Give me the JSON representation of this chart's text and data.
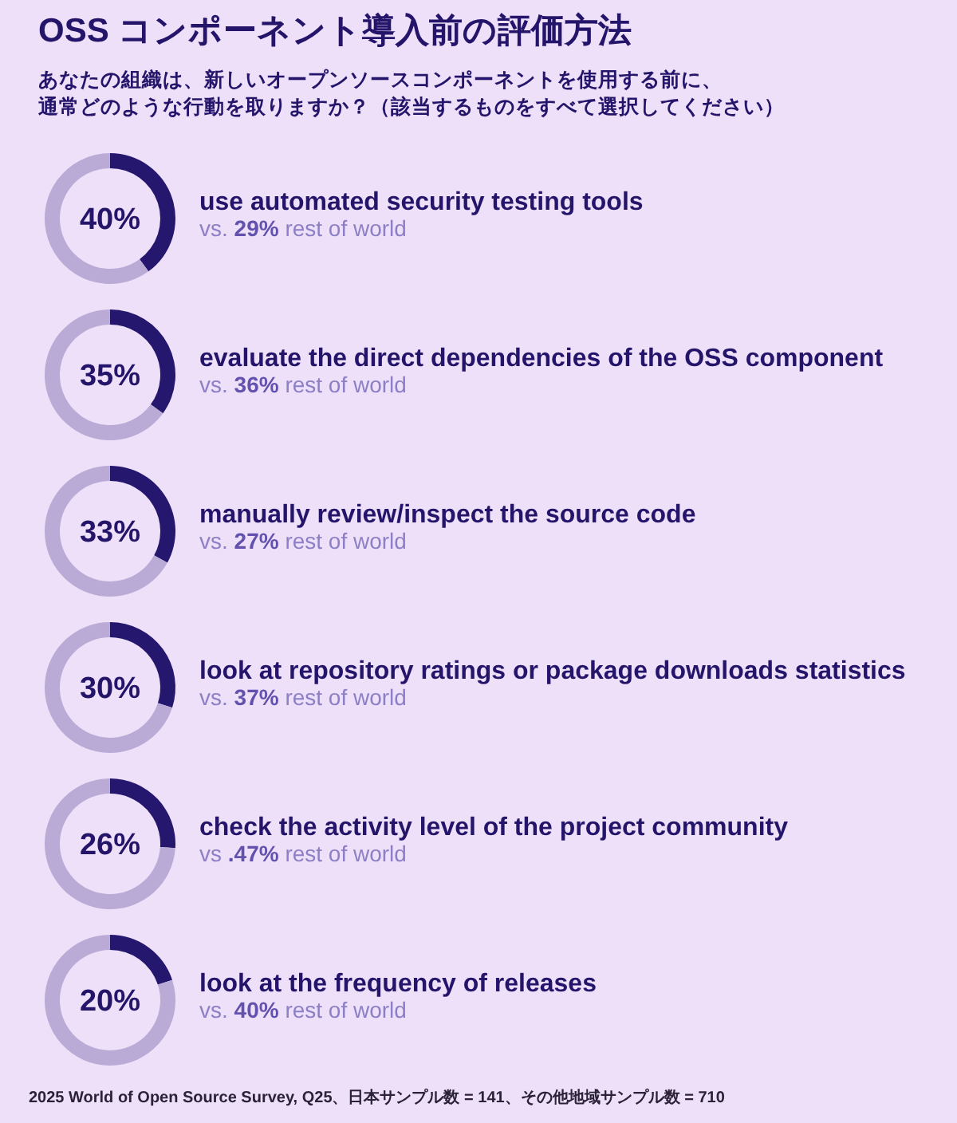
{
  "chart_data": [
    {
      "type": "donut",
      "title": "OSS コンポーネント導入前の評価方法",
      "subtitle": "あなたの組織は、新しいオープンソースコンポーネントを使用する前に、通常どのような行動を取りますか？（該当するものをすべて選択してください）",
      "categories": [
        "use automated security testing tools",
        null
      ],
      "values": [
        40,
        60
      ],
      "colors": [
        "#25166e",
        "#b9abd6"
      ],
      "annotations": [
        "40%",
        "vs. **29%** rest of world"
      ]
    },
    {
      "type": "donut",
      "categories": [
        "evaluate the direct dependencies of the OSS component",
        null
      ],
      "values": [
        35,
        65
      ],
      "colors": [
        "#25166e",
        "#b9abd6"
      ],
      "annotations": [
        "35%",
        "vs. **36%** rest of world"
      ]
    },
    {
      "type": "donut",
      "categories": [
        "manually review/inspect the source code",
        null
      ],
      "values": [
        33,
        67
      ],
      "colors": [
        "#25166e",
        "#b9abd6"
      ],
      "annotations": [
        "33%",
        "vs. **27%** rest of world"
      ]
    },
    {
      "type": "donut",
      "categories": [
        "look at repository ratings or package downloads statistics",
        null
      ],
      "values": [
        30,
        70
      ],
      "colors": [
        "#25166e",
        "#b9abd6"
      ],
      "annotations": [
        "30%",
        "vs. **37%** rest of world"
      ]
    },
    {
      "type": "donut",
      "categories": [
        "check the activity level of the project community",
        null
      ],
      "values": [
        26,
        74
      ],
      "colors": [
        "#25166e",
        "#b9abd6"
      ],
      "annotations": [
        "26%",
        "vs **.47%** rest of world"
      ]
    },
    {
      "type": "donut",
      "categories": [
        "look at the frequency of releases",
        null
      ],
      "values": [
        20,
        80
      ],
      "colors": [
        "#25166e",
        "#b9abd6"
      ],
      "annotations": [
        "20%",
        "vs. **40%** rest of world",
        "2025 World of Open Source Survey, Q25、日本サンプル数 = 141、その他地域サンプル数 = 710"
      ]
    }
  ]
}
